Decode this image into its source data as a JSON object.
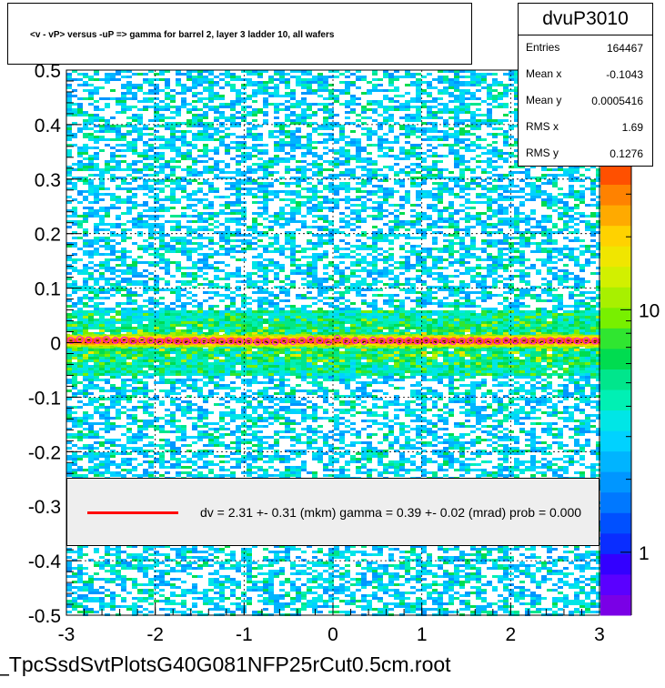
{
  "chart_data": {
    "type": "heatmap",
    "title": "<v - vP>       versus  -uP =>  gamma for barrel 2, layer 3 ladder 10, all wafers",
    "xlabel": "",
    "ylabel": "",
    "xlim": [
      -3,
      3
    ],
    "ylim": [
      -0.5,
      0.5
    ],
    "x_ticks": [
      "-3",
      "-2",
      "-1",
      "0",
      "1",
      "2",
      "3"
    ],
    "y_ticks": [
      "-0.5",
      "-0.4",
      "-0.3",
      "-0.2",
      "-0.1",
      "0",
      "0.1",
      "0.2",
      "0.3",
      "0.4",
      "0.5"
    ],
    "grid": true,
    "z_scale": "log",
    "z_ticks": [
      "1",
      "10"
    ],
    "z_tick_top_partial": "0",
    "band": {
      "center_y": 0.003,
      "core_halfwidth": 0.012,
      "tail_halfwidth": 0.06
    },
    "profile_points": [
      {
        "x": -2.95,
        "y": 0.004
      },
      {
        "x": -2.85,
        "y": 0.006
      },
      {
        "x": -2.75,
        "y": 0.005
      },
      {
        "x": -2.65,
        "y": 0.004
      },
      {
        "x": -2.55,
        "y": 0.006
      },
      {
        "x": -2.45,
        "y": 0.004
      },
      {
        "x": -2.35,
        "y": 0.005
      },
      {
        "x": -2.25,
        "y": 0.003
      },
      {
        "x": -2.15,
        "y": 0.005
      },
      {
        "x": -2.05,
        "y": 0.004
      },
      {
        "x": -1.95,
        "y": 0.002
      },
      {
        "x": -1.85,
        "y": 0.004
      },
      {
        "x": -1.75,
        "y": 0.003
      },
      {
        "x": -1.65,
        "y": 0.002
      },
      {
        "x": -1.55,
        "y": 0.004
      },
      {
        "x": -1.45,
        "y": 0.003
      },
      {
        "x": -1.35,
        "y": 0.004
      },
      {
        "x": -1.25,
        "y": 0.002
      },
      {
        "x": -1.15,
        "y": 0.003
      },
      {
        "x": -1.05,
        "y": 0.002
      },
      {
        "x": -0.95,
        "y": 0.003
      },
      {
        "x": -0.85,
        "y": 0.001
      },
      {
        "x": -0.75,
        "y": 0.002
      },
      {
        "x": -0.65,
        "y": 0.001
      },
      {
        "x": -0.55,
        "y": 0.003
      },
      {
        "x": -0.45,
        "y": 0.002
      },
      {
        "x": -0.35,
        "y": 0.004
      },
      {
        "x": -0.25,
        "y": 0.006
      },
      {
        "x": -0.15,
        "y": 0.004
      },
      {
        "x": -0.05,
        "y": 0.001
      },
      {
        "x": 0.05,
        "y": 0.008
      },
      {
        "x": 0.15,
        "y": 0.003
      },
      {
        "x": 0.25,
        "y": 0.004
      },
      {
        "x": 0.35,
        "y": 0.002
      },
      {
        "x": 0.45,
        "y": 0.005
      },
      {
        "x": 0.55,
        "y": 0.003
      },
      {
        "x": 0.65,
        "y": 0.004
      },
      {
        "x": 0.75,
        "y": 0.003
      },
      {
        "x": 0.85,
        "y": 0.004
      },
      {
        "x": 0.95,
        "y": 0.003
      },
      {
        "x": 1.05,
        "y": 0.004
      },
      {
        "x": 1.15,
        "y": 0.002
      },
      {
        "x": 1.25,
        "y": 0.003
      },
      {
        "x": 1.35,
        "y": 0.002
      },
      {
        "x": 1.45,
        "y": 0.003
      },
      {
        "x": 1.55,
        "y": 0.004
      },
      {
        "x": 1.65,
        "y": 0.003
      },
      {
        "x": 1.75,
        "y": 0.002
      },
      {
        "x": 1.85,
        "y": 0.003
      },
      {
        "x": 1.95,
        "y": 0.004
      },
      {
        "x": 2.05,
        "y": 0.003
      },
      {
        "x": 2.15,
        "y": 0.004
      },
      {
        "x": 2.25,
        "y": 0.003
      },
      {
        "x": 2.35,
        "y": 0.002
      },
      {
        "x": 2.45,
        "y": 0.004
      },
      {
        "x": 2.55,
        "y": 0.003
      },
      {
        "x": 2.65,
        "y": 0.004
      },
      {
        "x": 2.75,
        "y": 0.003
      },
      {
        "x": 2.85,
        "y": 0.004
      },
      {
        "x": 2.95,
        "y": 0.003
      }
    ]
  },
  "stats": {
    "name": "dvuP3010",
    "rows": [
      {
        "key": "Entries",
        "value": "164467"
      },
      {
        "key": "Mean x",
        "value": "-0.1043"
      },
      {
        "key": "Mean y",
        "value": "0.0005416"
      },
      {
        "key": "RMS x",
        "value": "1.69"
      },
      {
        "key": "RMS y",
        "value": "0.1276"
      }
    ]
  },
  "fit": {
    "text": "dv =     2.31 +-  0.31 (mkm) gamma =     0.39 +-  0.02 (mrad) prob = 0.000",
    "line_color": "#ff0000"
  },
  "file_label": "_TpcSsdSvtPlotsG40G081NFP25rCut0.5cm.root",
  "colors": {
    "palette": [
      "#7a00e6",
      "#5a00ff",
      "#3300ff",
      "#0a2dff",
      "#0050ff",
      "#0078ff",
      "#0096ff",
      "#00b4ff",
      "#00d2ff",
      "#00e6e6",
      "#00f0b4",
      "#00e68c",
      "#00dc50",
      "#30e630",
      "#78f000",
      "#a8f000",
      "#d2f000",
      "#f0e600",
      "#ffd200",
      "#ffaa00",
      "#ff8200",
      "#ff5000"
    ],
    "profile_marker": "#ff00ff"
  }
}
